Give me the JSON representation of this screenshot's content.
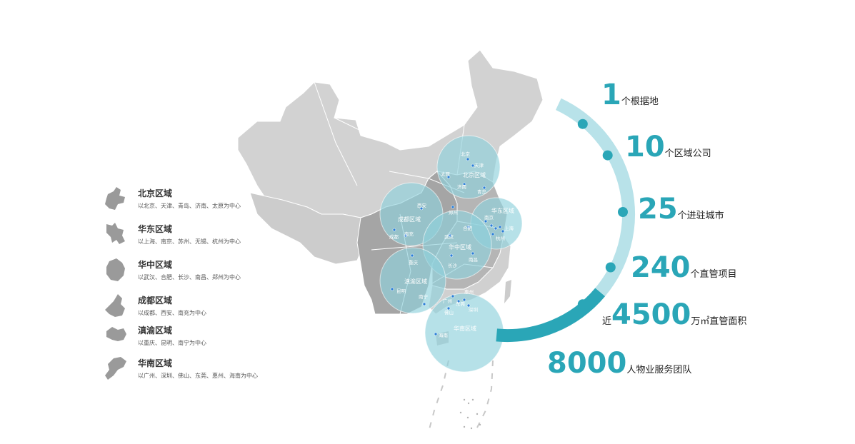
{
  "legend": [
    {
      "name": "北京区域",
      "desc": "以北京、天津、青岛、济南、太原为中心"
    },
    {
      "name": "华东区域",
      "desc": "以上海、南京、苏州、无锡、杭州为中心"
    },
    {
      "name": "华中区域",
      "desc": "以武汉、合肥、长沙、南昌、郑州为中心"
    },
    {
      "name": "成都区域",
      "desc": "以成都、西安、南充为中心"
    },
    {
      "name": "滇渝区域",
      "desc": "以重庆、昆明、南宁为中心"
    },
    {
      "name": "华南区域",
      "desc": "以广州、深圳、佛山、东莞、惠州、海南为中心"
    }
  ],
  "regions": {
    "beijing": {
      "label": "北京区域",
      "cities": [
        "北京",
        "天津",
        "太原",
        "济南",
        "青岛"
      ]
    },
    "huadong": {
      "label": "华东区域",
      "cities": [
        "南京",
        "上海",
        "杭州"
      ]
    },
    "huazhong": {
      "label": "华中区域",
      "cities": [
        "郑州",
        "合肥",
        "武汉",
        "长沙",
        "南昌"
      ]
    },
    "chengdu": {
      "label": "成都区域",
      "cities": [
        "西安",
        "成都",
        "南充"
      ]
    },
    "dianyu": {
      "label": "滇渝区域",
      "cities": [
        "重庆",
        "昆明",
        "南宁"
      ]
    },
    "huanan": {
      "label": "华南区域",
      "cities": [
        "广州",
        "惠州",
        "东莞",
        "深圳",
        "佛山",
        "海南"
      ]
    }
  },
  "stats": [
    {
      "prefix": "",
      "value": "1",
      "unit": "个根据地"
    },
    {
      "prefix": "",
      "value": "10",
      "unit": "个区域公司"
    },
    {
      "prefix": "",
      "value": "25",
      "unit": "个进驻城市"
    },
    {
      "prefix": "",
      "value": "240",
      "unit": "个直管项目"
    },
    {
      "prefix": "近",
      "value": "4500",
      "unit": "万㎡直管面积"
    },
    {
      "prefix": "",
      "value": "8000",
      "unit": "人物业服务团队"
    }
  ],
  "colors": {
    "accent": "#2aa6b7",
    "land": "#cfcfcf",
    "land_dark": "#a9a9a9",
    "bubble": "#8fd1dc",
    "arc_light": "#b8e2e9",
    "arc_dark": "#2aa6b7"
  }
}
